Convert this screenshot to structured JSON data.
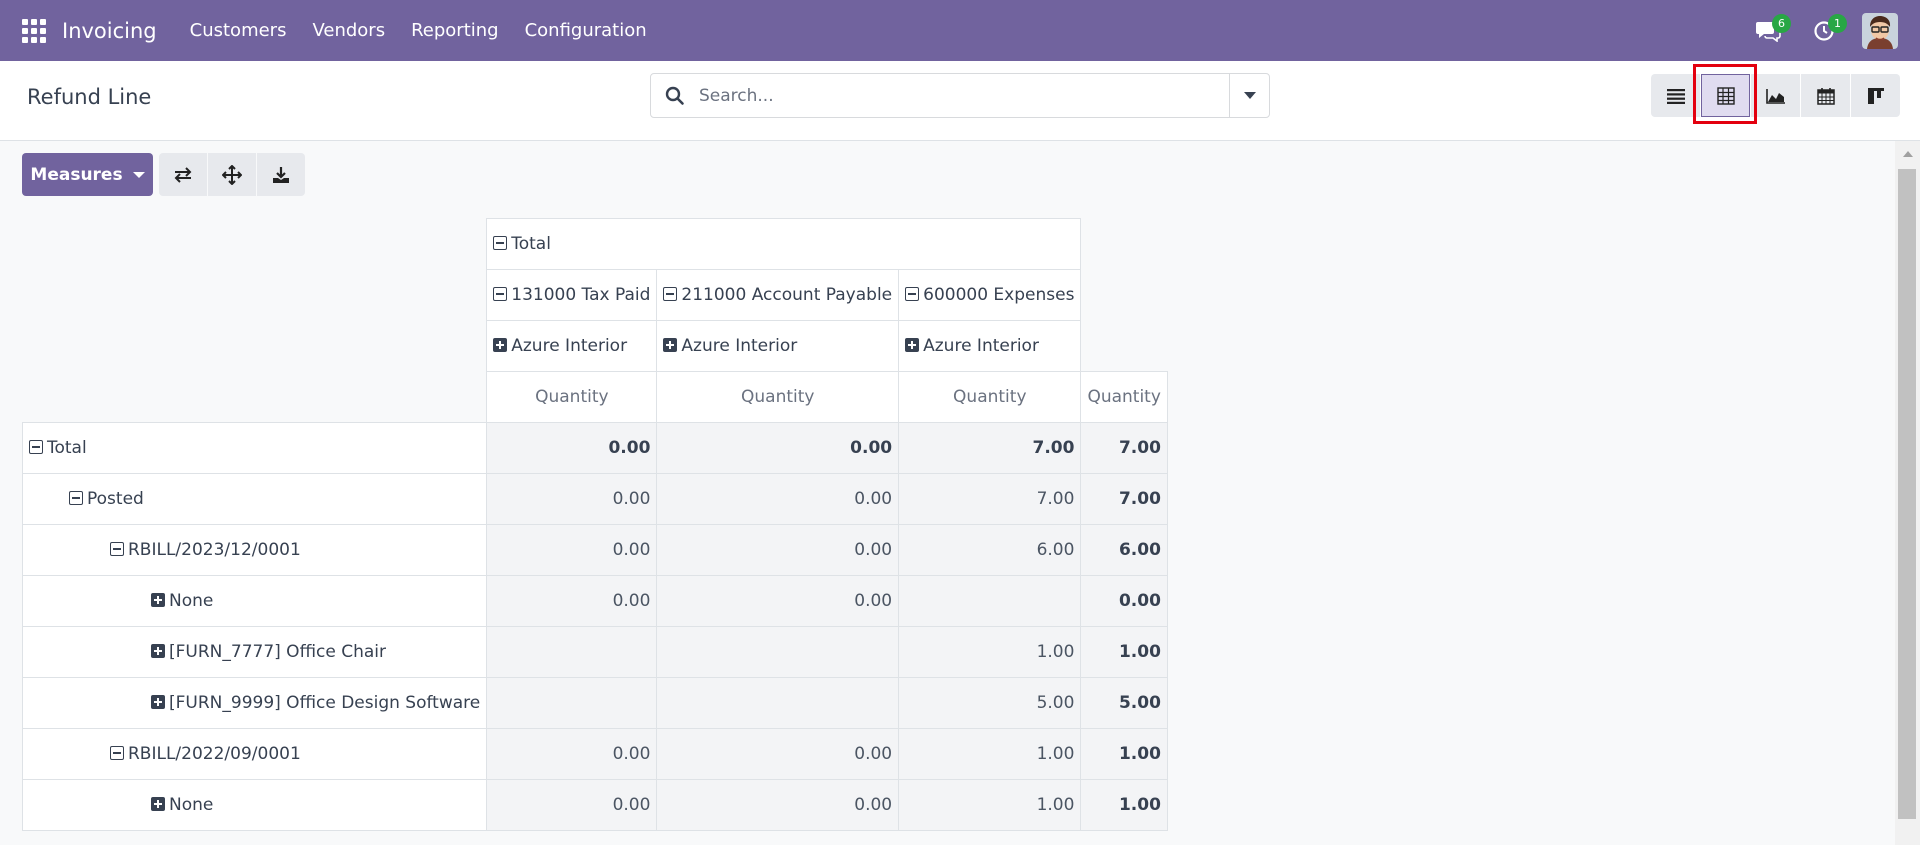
{
  "navbar": {
    "app_name": "Invoicing",
    "menu": [
      "Customers",
      "Vendors",
      "Reporting",
      "Configuration"
    ],
    "messages_count": "6",
    "activities_count": "1"
  },
  "control_panel": {
    "title": "Refund Line",
    "search_placeholder": "Search...",
    "views": [
      "list-view-icon",
      "pivot-view-icon",
      "graph-view-icon",
      "calendar-view-icon",
      "kanban-view-icon"
    ],
    "active_view": "pivot"
  },
  "actions": {
    "measures_label": "Measures",
    "tools": [
      "flip-axis-icon",
      "expand-all-icon",
      "download-icon"
    ]
  },
  "pivot": {
    "col_total": "Total",
    "col_groups": [
      "131000 Tax Paid",
      "211000 Account Payable",
      "600000 Expenses"
    ],
    "col_subgroups": [
      "Azure Interior",
      "Azure Interior",
      "Azure Interior"
    ],
    "measure": "Quantity",
    "rows": [
      {
        "label": "Total",
        "values": [
          "0.00",
          "0.00",
          "7.00",
          "7.00"
        ]
      },
      {
        "label": "Posted",
        "values": [
          "0.00",
          "0.00",
          "7.00",
          "7.00"
        ]
      },
      {
        "label": "RBILL/2023/12/0001",
        "values": [
          "0.00",
          "0.00",
          "6.00",
          "6.00"
        ]
      },
      {
        "label": "None",
        "values": [
          "0.00",
          "0.00",
          "",
          "0.00"
        ]
      },
      {
        "label": "[FURN_7777] Office Chair",
        "values": [
          "",
          "",
          "1.00",
          "1.00"
        ]
      },
      {
        "label": "[FURN_9999] Office Design Software",
        "values": [
          "",
          "",
          "5.00",
          "5.00"
        ]
      },
      {
        "label": "RBILL/2022/09/0001",
        "values": [
          "0.00",
          "0.00",
          "1.00",
          "1.00"
        ]
      },
      {
        "label": "None",
        "values": [
          "0.00",
          "0.00",
          "1.00",
          "1.00"
        ]
      }
    ]
  },
  "colors": {
    "brand": "#71639e",
    "badge": "#28a745",
    "highlight": "#e3000f"
  }
}
